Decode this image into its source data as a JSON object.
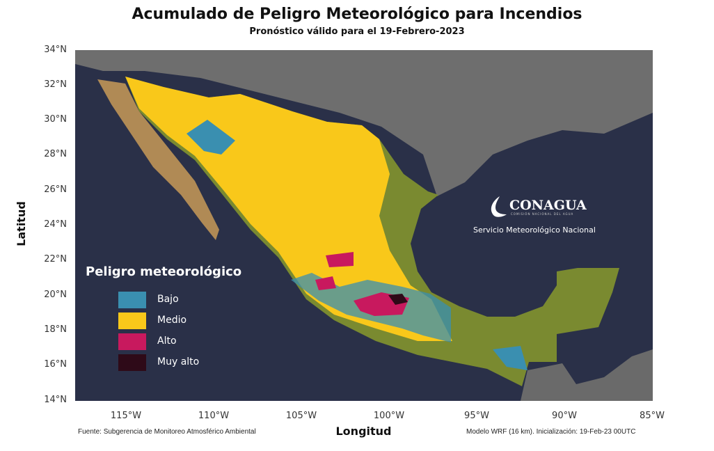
{
  "title": "Acumulado de Peligro Meteorológico para Incendios",
  "subtitle": "Pronóstico válido para el 19-Febrero-2023",
  "axes": {
    "ylabel": "Latitud",
    "xlabel": "Longitud",
    "lat_ticks": [
      "34°N",
      "32°N",
      "30°N",
      "28°N",
      "26°N",
      "24°N",
      "22°N",
      "20°N",
      "18°N",
      "16°N",
      "14°N"
    ],
    "lon_ticks": [
      "115°W",
      "110°W",
      "105°W",
      "100°W",
      "95°W",
      "90°W",
      "85°W"
    ]
  },
  "legend": {
    "title": "Peligro meteorológico",
    "items": [
      {
        "label": "Bajo",
        "color": "#3a8fb0"
      },
      {
        "label": "Medio",
        "color": "#f9c81a"
      },
      {
        "label": "Alto",
        "color": "#c8195e"
      },
      {
        "label": "Muy alto",
        "color": "#2e0a18"
      }
    ]
  },
  "logo": {
    "name": "CONAGUA",
    "tagline": "COMISIÓN NACIONAL DEL AGUA",
    "service": "Servicio Meteorológico Nacional"
  },
  "footer": {
    "source": "Fuente: Subgerencia de Monitoreo Atmosférico Ambiental",
    "model": "Modelo WRF (16 km). Inicialización: 19-Feb-23  00UTC"
  }
}
